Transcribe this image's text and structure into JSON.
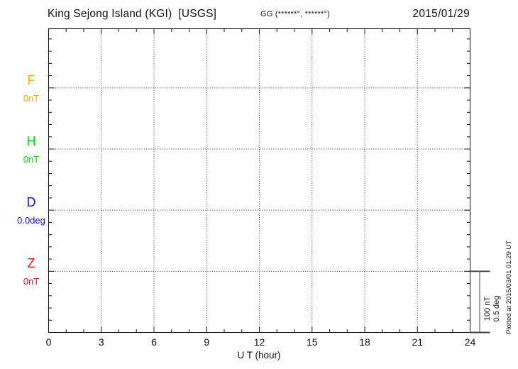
{
  "header": {
    "title": "King Sejong Island (KGI)  [USGS]",
    "location": "GG (******°, ******°)",
    "date": "2015/01/29"
  },
  "channels": [
    {
      "label": "F",
      "value": "0nT",
      "color": "#FFAA00"
    },
    {
      "label": "H",
      "value": "0nT",
      "color": "#00DD00"
    },
    {
      "label": "D",
      "value": "0.0deg",
      "color": "#1111EE"
    },
    {
      "label": "Z",
      "value": "0nT",
      "color": "#EE1111"
    }
  ],
  "x_axis": {
    "label": "U T (hour)",
    "tick_labels": [
      "0",
      "3",
      "6",
      "9",
      "12",
      "15",
      "18",
      "21",
      "24"
    ]
  },
  "scale_bar": {
    "line1": "100 nT",
    "line2": "0.5 deg"
  },
  "plotted_at": "Plotted at 2015/03/01 01:29 UT",
  "chart_data": {
    "type": "line",
    "title": "King Sejong Island (KGI) [USGS] magnetogram, 2015/01/29",
    "xlabel": "U T (hour)",
    "x_range": [
      0,
      24
    ],
    "x_major_ticks": [
      0,
      3,
      6,
      9,
      12,
      15,
      18,
      21,
      24
    ],
    "x_minor_step_hours": 1,
    "grid": "dotted vertical lines at each 3-hour mark; dotted horizontal baseline per channel",
    "series": [
      {
        "name": "F",
        "baseline_label": "0nT",
        "color": "#FFAA00",
        "values": []
      },
      {
        "name": "H",
        "baseline_label": "0nT",
        "color": "#00DD00",
        "values": []
      },
      {
        "name": "D",
        "baseline_label": "0.0deg",
        "color": "#1111EE",
        "values": []
      },
      {
        "name": "Z",
        "baseline_label": "0nT",
        "color": "#EE1111",
        "values": []
      }
    ],
    "scale_per_division": {
      "field": "100 nT",
      "declination": "0.5 deg"
    },
    "note": "No data traces are plotted; frame shows empty baselines only",
    "legend_position": "left margin channel labels"
  }
}
